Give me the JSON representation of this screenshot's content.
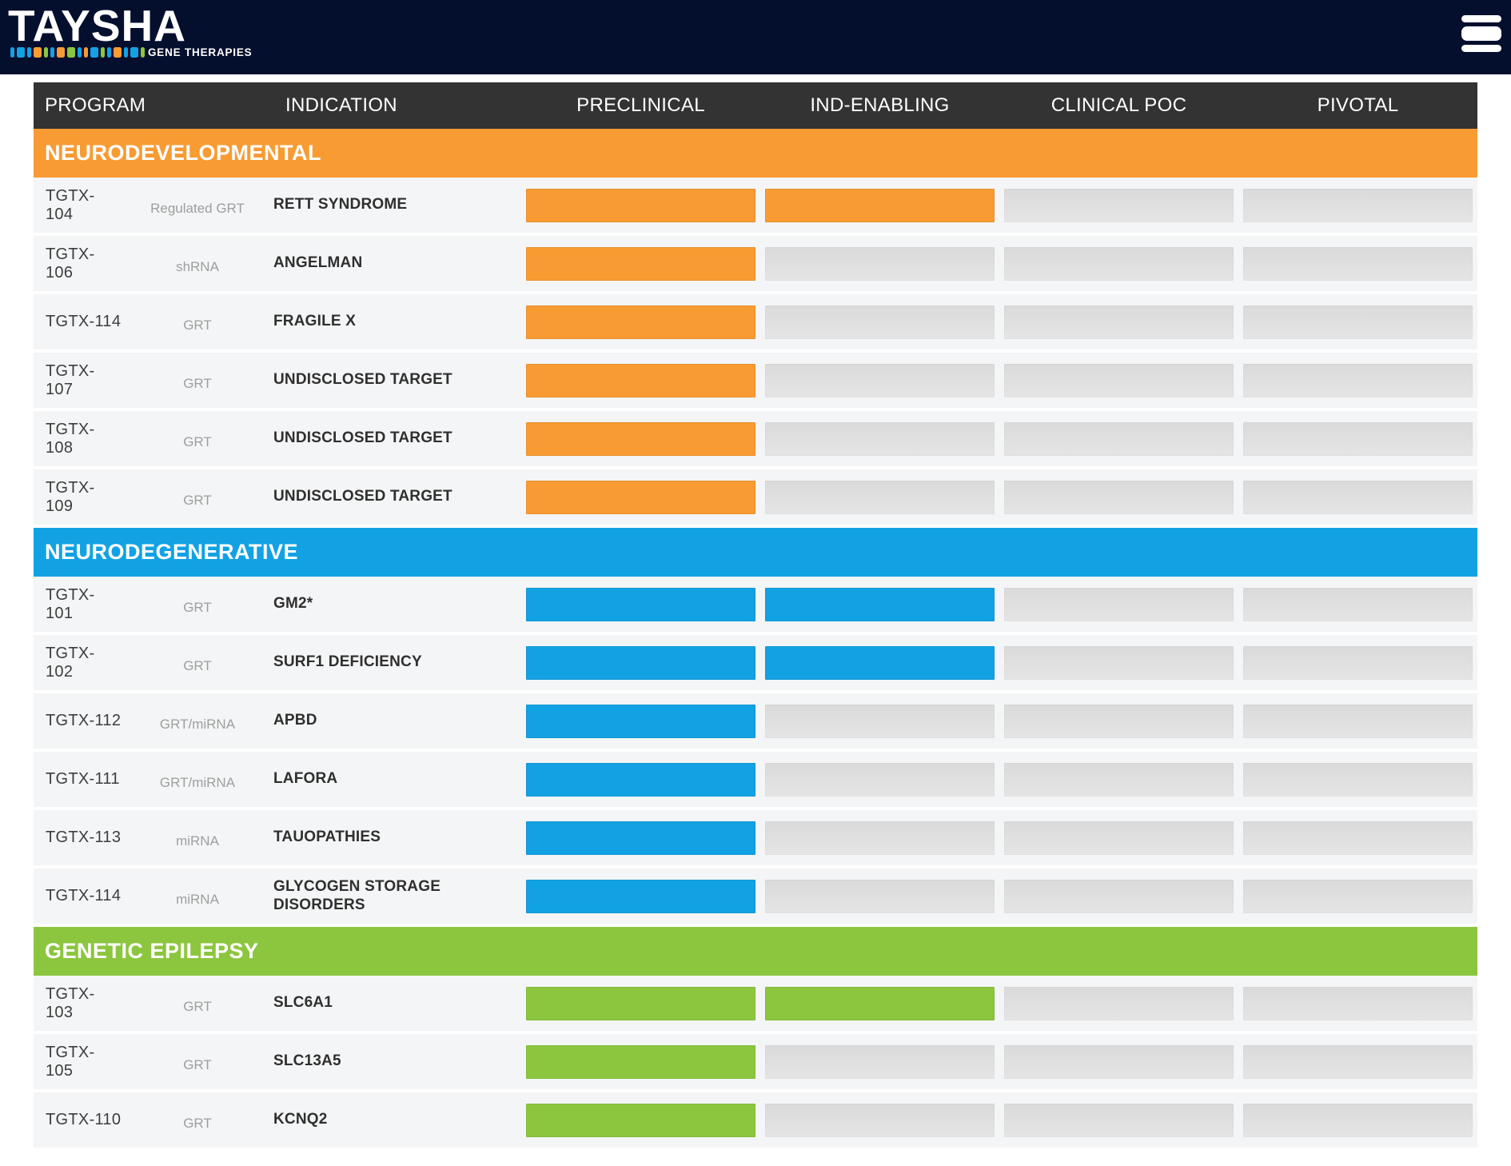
{
  "header": {
    "logo_text": "TAYSHA",
    "logo_subtext": "GENE THERAPIES",
    "menu_icon": "hamburger-icon",
    "logo_blocks": [
      "blue-n",
      "blue-w",
      "blue-n",
      "orange-w",
      "green-n",
      "blue-n",
      "orange-w",
      "green-w",
      "blue-n",
      "orange-n",
      "blue-w",
      "green-n",
      "blue-n",
      "orange-w",
      "blue-n",
      "blue-w",
      "green-n"
    ]
  },
  "colors": {
    "navy": "#040F2E",
    "table_header": "#333333",
    "orange": "#F89B33",
    "blue": "#12A2E4",
    "green": "#8CC63F",
    "gray_bar": "#E0E0E0",
    "row_bg": "#F4F5F6"
  },
  "table": {
    "columns": [
      "PROGRAM",
      "INDICATION",
      "PRECLINICAL",
      "IND-ENABLING",
      "CLINICAL POC",
      "PIVOTAL"
    ],
    "stages": [
      "PRECLINICAL",
      "IND-ENABLING",
      "CLINICAL POC",
      "PIVOTAL"
    ],
    "sections": [
      {
        "name": "NEURODEVELOPMENTAL",
        "color": "#F89B33",
        "rows": [
          {
            "program": "TGTX-104",
            "type": "Regulated GRT",
            "indication": "RETT SYNDROME",
            "stages_completed": 2
          },
          {
            "program": "TGTX-106",
            "type": "shRNA",
            "indication": "ANGELMAN",
            "stages_completed": 1
          },
          {
            "program": "TGTX-114",
            "type": "GRT",
            "indication": "FRAGILE X",
            "stages_completed": 1
          },
          {
            "program": "TGTX-107",
            "type": "GRT",
            "indication": "UNDISCLOSED TARGET",
            "stages_completed": 1
          },
          {
            "program": "TGTX-108",
            "type": "GRT",
            "indication": "UNDISCLOSED TARGET",
            "stages_completed": 1
          },
          {
            "program": "TGTX-109",
            "type": "GRT",
            "indication": "UNDISCLOSED TARGET",
            "stages_completed": 1
          }
        ]
      },
      {
        "name": "NEURODEGENERATIVE",
        "color": "#12A2E4",
        "rows": [
          {
            "program": "TGTX-101",
            "type": "GRT",
            "indication": "GM2*",
            "stages_completed": 2
          },
          {
            "program": "TGTX-102",
            "type": "GRT",
            "indication": "SURF1 DEFICIENCY",
            "stages_completed": 2
          },
          {
            "program": "TGTX-112",
            "type": "GRT/miRNA",
            "indication": "APBD",
            "stages_completed": 1
          },
          {
            "program": "TGTX-111",
            "type": "GRT/miRNA",
            "indication": "LAFORA",
            "stages_completed": 1
          },
          {
            "program": "TGTX-113",
            "type": "miRNA",
            "indication": "TAUOPATHIES",
            "stages_completed": 1
          },
          {
            "program": "TGTX-114",
            "type": "miRNA",
            "indication": "GLYCOGEN STORAGE DISORDERS",
            "stages_completed": 1
          }
        ]
      },
      {
        "name": "GENETIC EPILEPSY",
        "color": "#8CC63F",
        "rows": [
          {
            "program": "TGTX-103",
            "type": "GRT",
            "indication": "SLC6A1",
            "stages_completed": 2
          },
          {
            "program": "TGTX-105",
            "type": "GRT",
            "indication": "SLC13A5",
            "stages_completed": 1
          },
          {
            "program": "TGTX-110",
            "type": "GRT",
            "indication": "KCNQ2",
            "stages_completed": 1
          }
        ]
      }
    ]
  }
}
